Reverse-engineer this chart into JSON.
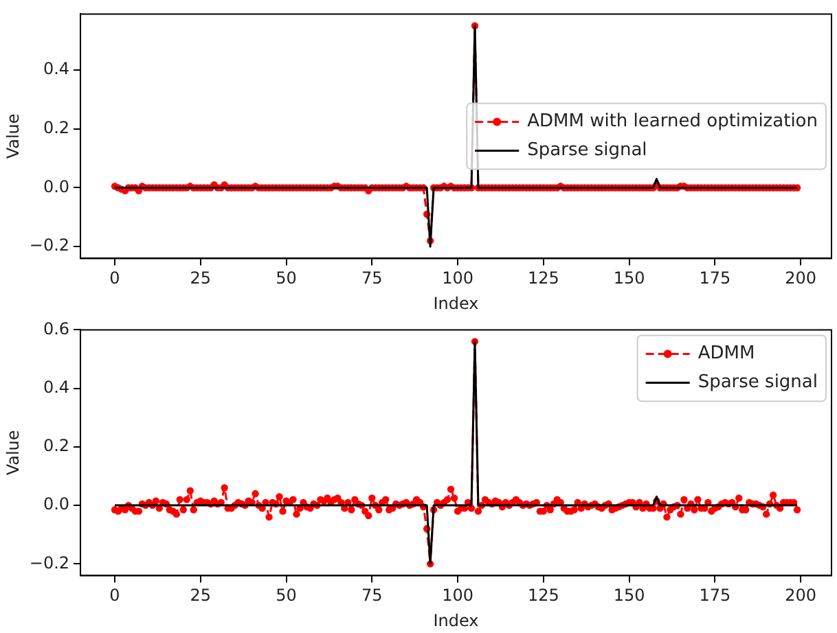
{
  "chart_data": [
    {
      "type": "line",
      "xlabel": "Index",
      "ylabel": "Value",
      "xlim": [
        -10,
        209
      ],
      "ylim": [
        -0.24,
        0.59
      ],
      "xticks": [
        0,
        25,
        50,
        75,
        100,
        125,
        150,
        175,
        200
      ],
      "yticks": [
        -0.2,
        {
          "value": 0,
          "label": "0.0"
        },
        0.2,
        0.4
      ],
      "grid": false,
      "legend": "right",
      "x": [
        0,
        1,
        2,
        3,
        4,
        5,
        6,
        7,
        8,
        9,
        10,
        11,
        12,
        13,
        14,
        15,
        16,
        17,
        18,
        19,
        20,
        21,
        22,
        23,
        24,
        25,
        26,
        27,
        28,
        29,
        30,
        31,
        32,
        33,
        34,
        35,
        36,
        37,
        38,
        39,
        40,
        41,
        42,
        43,
        44,
        45,
        46,
        47,
        48,
        49,
        50,
        51,
        52,
        53,
        54,
        55,
        56,
        57,
        58,
        59,
        60,
        61,
        62,
        63,
        64,
        65,
        66,
        67,
        68,
        69,
        70,
        71,
        72,
        73,
        74,
        75,
        76,
        77,
        78,
        79,
        80,
        81,
        82,
        83,
        84,
        85,
        86,
        87,
        88,
        89,
        90,
        91,
        92,
        93,
        94,
        95,
        96,
        97,
        98,
        99,
        100,
        101,
        102,
        103,
        104,
        105,
        106,
        107,
        108,
        109,
        110,
        111,
        112,
        113,
        114,
        115,
        116,
        117,
        118,
        119,
        120,
        121,
        122,
        123,
        124,
        125,
        126,
        127,
        128,
        129,
        130,
        131,
        132,
        133,
        134,
        135,
        136,
        137,
        138,
        139,
        140,
        141,
        142,
        143,
        144,
        145,
        146,
        147,
        148,
        149,
        150,
        151,
        152,
        153,
        154,
        155,
        156,
        157,
        158,
        159,
        160,
        161,
        162,
        163,
        164,
        165,
        166,
        167,
        168,
        169,
        170,
        171,
        172,
        173,
        174,
        175,
        176,
        177,
        178,
        179,
        180,
        181,
        182,
        183,
        184,
        185,
        186,
        187,
        188,
        189,
        190,
        191,
        192,
        193,
        194,
        195,
        196,
        197,
        198,
        199
      ],
      "series": [
        {
          "name": "ADMM with learned optimization",
          "color": "#ff0000",
          "marker": "circle",
          "line_style": "dashed",
          "values": [
            0.005,
            0,
            -0.005,
            -0.01,
            0,
            0,
            0,
            -0.01,
            0.005,
            0,
            0,
            0,
            0,
            0,
            0,
            0,
            0,
            0,
            0,
            0,
            0,
            0,
            0.005,
            0,
            0,
            0,
            0,
            0,
            0,
            0.01,
            0,
            0,
            0.01,
            0,
            0,
            0,
            0,
            0,
            0,
            0,
            0,
            0.005,
            0,
            0,
            0,
            0,
            0,
            0,
            0,
            0,
            0,
            0,
            0,
            0,
            0,
            0,
            0,
            0,
            0,
            0,
            0,
            0,
            0,
            0,
            0.005,
            0.005,
            0,
            0,
            0,
            0,
            0,
            0,
            0,
            0,
            -0.01,
            0,
            0,
            0,
            0,
            0,
            0,
            0,
            0,
            0,
            0,
            0.005,
            0,
            0,
            0,
            0,
            0,
            -0.09,
            -0.18,
            0,
            0,
            0,
            0.005,
            0,
            0.005,
            0,
            0,
            0,
            0,
            0,
            0,
            0.55,
            0,
            0,
            0,
            0,
            0,
            0,
            0,
            0,
            0,
            0,
            0,
            0,
            0,
            0,
            0,
            0,
            0,
            0,
            0,
            0,
            0,
            0,
            0,
            0,
            0.005,
            0,
            0,
            0,
            0,
            0,
            0,
            0,
            0,
            0,
            0,
            0,
            0,
            0,
            0,
            0,
            0,
            0,
            0,
            0,
            0,
            0,
            0,
            0,
            0,
            0,
            0,
            0,
            0.01,
            0,
            0,
            0,
            0,
            0,
            0,
            0.005,
            0.005,
            0,
            0,
            0,
            0,
            0,
            0,
            0,
            0,
            0,
            0,
            0,
            0,
            0,
            0,
            0,
            0,
            0,
            0,
            0,
            0,
            0,
            0,
            0,
            0,
            0,
            0,
            0,
            0,
            0,
            0,
            0,
            0,
            0
          ]
        },
        {
          "name": "Sparse signal",
          "color": "#000000",
          "line_style": "solid",
          "x": [
            0,
            91,
            92,
            93,
            104,
            105,
            106,
            157,
            158,
            159,
            199
          ],
          "values": [
            0,
            0,
            -0.2,
            0,
            0,
            0.55,
            0,
            0,
            0.03,
            0,
            0
          ]
        }
      ]
    },
    {
      "type": "line",
      "xlabel": "Index",
      "ylabel": "Value",
      "xlim": [
        -10,
        209
      ],
      "ylim": [
        -0.24,
        0.6
      ],
      "xticks": [
        0,
        25,
        50,
        75,
        100,
        125,
        150,
        175,
        200
      ],
      "yticks": [
        -0.2,
        {
          "value": 0,
          "label": "0.0"
        },
        0.2,
        0.4,
        0.6
      ],
      "grid": false,
      "legend": "top right",
      "x": [
        0,
        1,
        2,
        3,
        4,
        5,
        6,
        7,
        8,
        9,
        10,
        11,
        12,
        13,
        14,
        15,
        16,
        17,
        18,
        19,
        20,
        21,
        22,
        23,
        24,
        25,
        26,
        27,
        28,
        29,
        30,
        31,
        32,
        33,
        34,
        35,
        36,
        37,
        38,
        39,
        40,
        41,
        42,
        43,
        44,
        45,
        46,
        47,
        48,
        49,
        50,
        51,
        52,
        53,
        54,
        55,
        56,
        57,
        58,
        59,
        60,
        61,
        62,
        63,
        64,
        65,
        66,
        67,
        68,
        69,
        70,
        71,
        72,
        73,
        74,
        75,
        76,
        77,
        78,
        79,
        80,
        81,
        82,
        83,
        84,
        85,
        86,
        87,
        88,
        89,
        90,
        91,
        92,
        93,
        94,
        95,
        96,
        97,
        98,
        99,
        100,
        101,
        102,
        103,
        104,
        105,
        106,
        107,
        108,
        109,
        110,
        111,
        112,
        113,
        114,
        115,
        116,
        117,
        118,
        119,
        120,
        121,
        122,
        123,
        124,
        125,
        126,
        127,
        128,
        129,
        130,
        131,
        132,
        133,
        134,
        135,
        136,
        137,
        138,
        139,
        140,
        141,
        142,
        143,
        144,
        145,
        146,
        147,
        148,
        149,
        150,
        151,
        152,
        153,
        154,
        155,
        156,
        157,
        158,
        159,
        160,
        161,
        162,
        163,
        164,
        165,
        166,
        167,
        168,
        169,
        170,
        171,
        172,
        173,
        174,
        175,
        176,
        177,
        178,
        179,
        180,
        181,
        182,
        183,
        184,
        185,
        186,
        187,
        188,
        189,
        190,
        191,
        192,
        193,
        194,
        195,
        196,
        197,
        198,
        199
      ],
      "series": [
        {
          "name": "ADMM",
          "color": "#ff0000",
          "marker": "circle",
          "line_style": "dashed",
          "values": [
            -0.015,
            -0.02,
            -0.01,
            -0.015,
            0,
            -0.01,
            -0.02,
            -0.02,
            0.005,
            0,
            0.01,
            0,
            0.015,
            -0.01,
            0.01,
            0.005,
            -0.015,
            -0.02,
            -0.03,
            0.02,
            -0.015,
            0.02,
            0.05,
            -0.015,
            0.01,
            0.015,
            0.01,
            0.01,
            0.005,
            0.015,
            0.005,
            0.01,
            0.06,
            -0.01,
            -0.01,
            0,
            0.01,
            0.005,
            0,
            0.015,
            0.01,
            0.04,
            0,
            -0.01,
            0.01,
            -0.04,
            0.01,
            0.005,
            0.03,
            -0.02,
            0.015,
            0.01,
            0.02,
            -0.03,
            -0.01,
            0.01,
            -0.005,
            -0.01,
            0.005,
            0,
            0.02,
            0.015,
            0.025,
            0.01,
            0.02,
            0.025,
            0.01,
            -0.01,
            0.01,
            -0.015,
            0.02,
            0.005,
            0,
            -0.02,
            -0.035,
            0.025,
            0,
            -0.015,
            0.01,
            0.02,
            -0.015,
            -0.01,
            0.005,
            0,
            0.005,
            0.01,
            0,
            0.005,
            0.02,
            0.01,
            -0.005,
            -0.08,
            -0.2,
            -0.015,
            0.01,
            0,
            0.01,
            0.02,
            0.055,
            0.025,
            -0.02,
            -0.01,
            -0.01,
            0.01,
            -0.01,
            0.56,
            -0.02,
            0,
            0.02,
            0.01,
            0.005,
            0.015,
            0.01,
            -0.005,
            0.01,
            0,
            0.01,
            0.02,
            0.01,
            0,
            0.005,
            0,
            0.005,
            0.01,
            -0.02,
            -0.02,
            0,
            -0.015,
            0.005,
            0.02,
            0.01,
            -0.01,
            -0.02,
            -0.02,
            -0.015,
            0.01,
            -0.01,
            0.005,
            -0.005,
            0,
            0.005,
            -0.005,
            -0.01,
            0,
            0.005,
            -0.015,
            -0.01,
            -0.005,
            0,
            0.005,
            0.01,
            0.01,
            -0.005,
            0.01,
            -0.01,
            0.005,
            -0.01,
            -0.01,
            0.015,
            -0.01,
            0.005,
            -0.04,
            -0.015,
            -0.005,
            0,
            -0.03,
            0.02,
            -0.01,
            0.005,
            -0.015,
            0.02,
            -0.01,
            -0.01,
            0.01,
            -0.02,
            -0.01,
            -0.005,
            0.005,
            0.01,
            0.005,
            0.01,
            -0.005,
            0.025,
            -0.015,
            -0.015,
            0.01,
            0.005,
            0.005,
            0,
            -0.005,
            -0.03,
            0.005,
            0.035,
            0,
            -0.01,
            0.01,
            0.01,
            0.01,
            0.01,
            -0.015
          ]
        },
        {
          "name": "Sparse signal",
          "color": "#000000",
          "line_style": "solid",
          "x": [
            0,
            91,
            92,
            93,
            104,
            105,
            106,
            157,
            158,
            159,
            199
          ],
          "values": [
            0,
            0,
            -0.2,
            0,
            0,
            0.56,
            0,
            0,
            0.03,
            0,
            0
          ]
        }
      ]
    }
  ]
}
